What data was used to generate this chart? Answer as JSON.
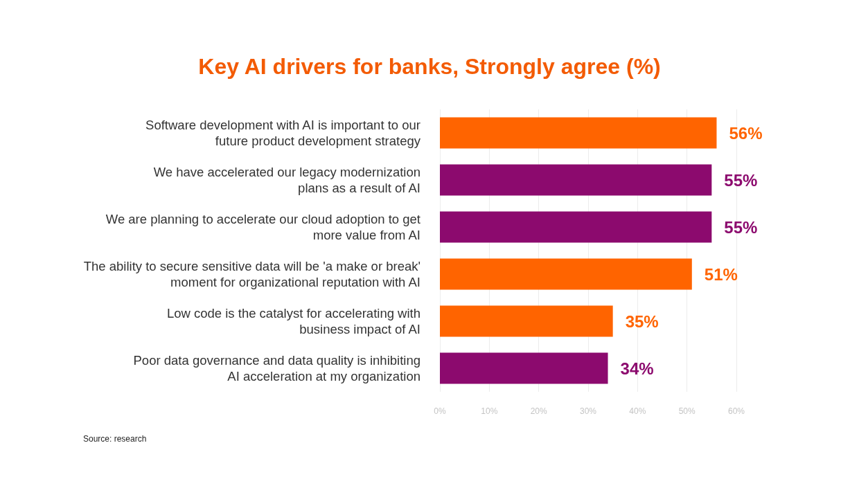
{
  "chart_data": {
    "type": "bar",
    "orientation": "horizontal",
    "title": "Key AI drivers for banks, Strongly agree (%)",
    "categories": [
      "Software development with AI is important to our\nfuture product development strategy",
      "We have accelerated our legacy modernization\nplans as a result of AI",
      "We are planning to accelerate our cloud adoption to get\nmore value from AI",
      "The ability to secure sensitive data will be 'a make or break'\nmoment for organizational reputation with AI",
      "Low code is the catalyst for accelerating with\nbusiness impact of AI",
      "Poor data governance and data quality is inhibiting\nAI acceleration at my organization"
    ],
    "values": [
      56,
      55,
      55,
      51,
      35,
      34
    ],
    "colors": [
      "#ff6400",
      "#8c0a6e",
      "#8c0a6e",
      "#ff6400",
      "#ff6400",
      "#8c0a6e"
    ],
    "value_labels": [
      "56%",
      "55%",
      "55%",
      "51%",
      "35%",
      "34%"
    ],
    "xlim": [
      0,
      60
    ],
    "xticks": [
      {
        "value": 0,
        "label": "0%"
      },
      {
        "value": 10,
        "label": "10%"
      },
      {
        "value": 20,
        "label": "20%"
      },
      {
        "value": 30,
        "label": "30%"
      },
      {
        "value": 40,
        "label": "40%"
      },
      {
        "value": 50,
        "label": "50%"
      },
      {
        "value": 60,
        "label": "60%"
      }
    ],
    "grid": "x",
    "annotations": [
      "Source: research"
    ]
  }
}
